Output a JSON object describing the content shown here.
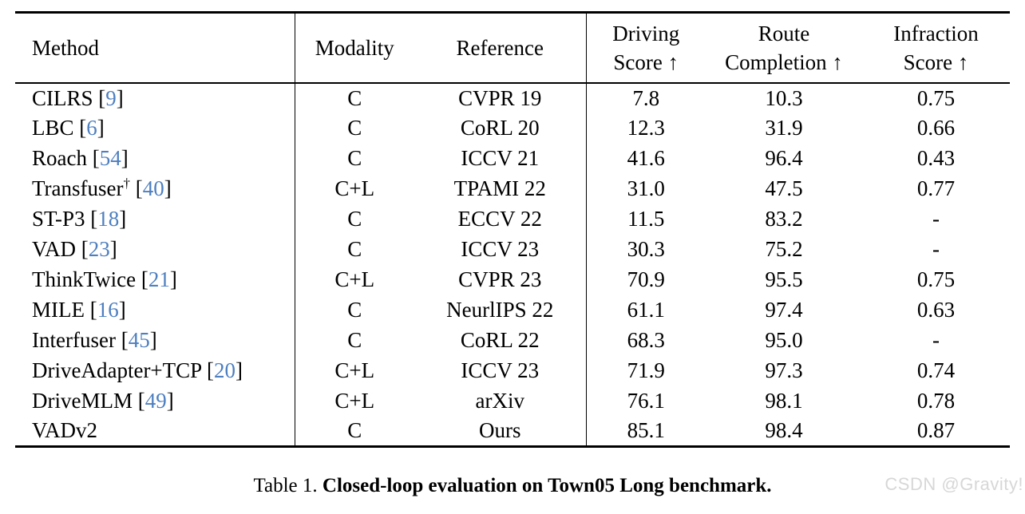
{
  "table": {
    "header": {
      "method": "Method",
      "modality": "Modality",
      "reference": "Reference",
      "driving_line1": "Driving",
      "driving_line2": "Score ↑",
      "route_line1": "Route",
      "route_line2": "Completion ↑",
      "infraction_line1": "Infraction",
      "infraction_line2": "Score ↑"
    },
    "rows": [
      {
        "method": "CILRS",
        "dagger": false,
        "cite": "9",
        "modality": "C",
        "reference": "CVPR 19",
        "driving_score": "7.8",
        "route_completion": "10.3",
        "infraction_score": "0.75"
      },
      {
        "method": "LBC",
        "dagger": false,
        "cite": "6",
        "modality": "C",
        "reference": "CoRL 20",
        "driving_score": "12.3",
        "route_completion": "31.9",
        "infraction_score": "0.66"
      },
      {
        "method": "Roach",
        "dagger": false,
        "cite": "54",
        "modality": "C",
        "reference": "ICCV 21",
        "driving_score": "41.6",
        "route_completion": "96.4",
        "infraction_score": "0.43"
      },
      {
        "method": "Transfuser",
        "dagger": true,
        "cite": "40",
        "modality": "C+L",
        "reference": "TPAMI 22",
        "driving_score": "31.0",
        "route_completion": "47.5",
        "infraction_score": "0.77"
      },
      {
        "method": "ST-P3",
        "dagger": false,
        "cite": "18",
        "modality": "C",
        "reference": "ECCV 22",
        "driving_score": "11.5",
        "route_completion": "83.2",
        "infraction_score": "-"
      },
      {
        "method": "VAD",
        "dagger": false,
        "cite": "23",
        "modality": "C",
        "reference": "ICCV 23",
        "driving_score": "30.3",
        "route_completion": "75.2",
        "infraction_score": "-"
      },
      {
        "method": "ThinkTwice",
        "dagger": false,
        "cite": "21",
        "modality": "C+L",
        "reference": "CVPR 23",
        "driving_score": "70.9",
        "route_completion": "95.5",
        "infraction_score": "0.75"
      },
      {
        "method": "MILE",
        "dagger": false,
        "cite": "16",
        "modality": "C",
        "reference": "NeurlIPS 22",
        "driving_score": "61.1",
        "route_completion": "97.4",
        "infraction_score": "0.63"
      },
      {
        "method": "Interfuser",
        "dagger": false,
        "cite": "45",
        "modality": "C",
        "reference": "CoRL 22",
        "driving_score": "68.3",
        "route_completion": "95.0",
        "infraction_score": "-"
      },
      {
        "method": "DriveAdapter+TCP",
        "dagger": false,
        "cite": "20",
        "modality": "C+L",
        "reference": "ICCV 23",
        "driving_score": "71.9",
        "route_completion": "97.3",
        "infraction_score": "0.74"
      },
      {
        "method": "DriveMLM",
        "dagger": false,
        "cite": "49",
        "modality": "C+L",
        "reference": "arXiv",
        "driving_score": "76.1",
        "route_completion": "98.1",
        "infraction_score": "0.78"
      },
      {
        "method": "VADv2",
        "dagger": false,
        "cite": null,
        "modality": "C",
        "reference": "Ours",
        "driving_score": "85.1",
        "route_completion": "98.4",
        "infraction_score": "0.87"
      }
    ],
    "bracket_open": " [",
    "bracket_close": "]",
    "dagger_symbol": "†"
  },
  "caption": {
    "label": "Table 1. ",
    "title": "Closed-loop evaluation on Town05 Long benchmark."
  },
  "watermark": "CSDN @Gravity!",
  "colors": {
    "citation_blue": "#4d7fc0",
    "watermark_gray": "#d7d7d7",
    "text": "#000000",
    "rule": "#000000"
  }
}
